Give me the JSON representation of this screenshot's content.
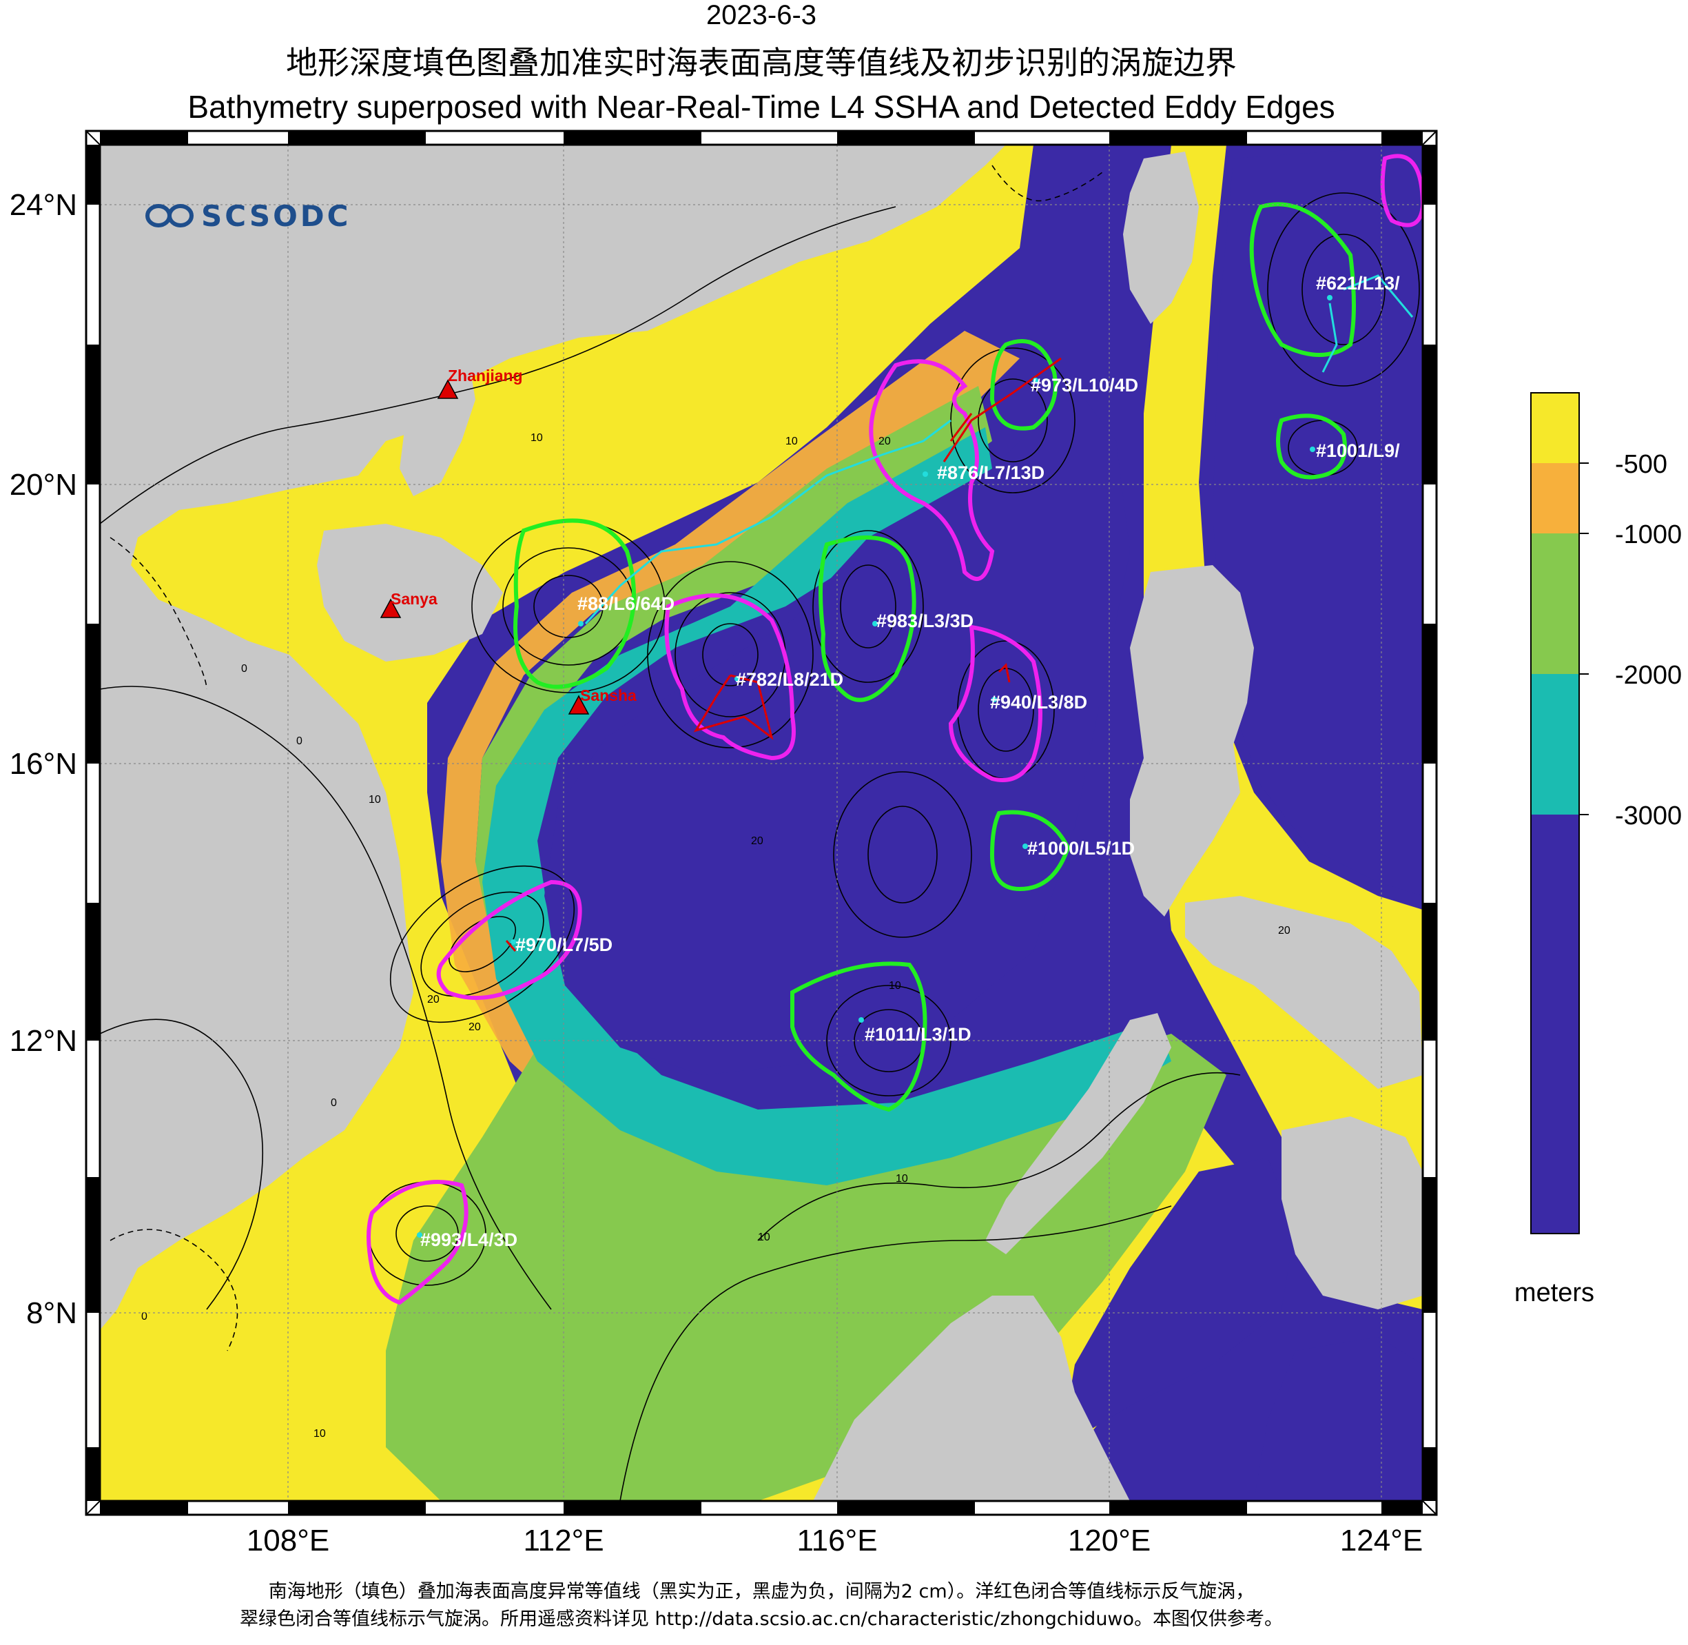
{
  "header": {
    "date": "2023-6-3",
    "title_cn": "地形深度填色图叠加准实时海表面高度等值线及初步识别的涡旋边界",
    "title_en": "Bathymetry superposed with Near-Real-Time L4 SSHA and Detected Eddy Edges"
  },
  "logo": {
    "text": "SCSODC"
  },
  "axes": {
    "lat_labels": [
      "24°N",
      "20°N",
      "16°N",
      "12°N",
      "8°N"
    ],
    "lon_labels": [
      "108°E",
      "112°E",
      "116°E",
      "120°E",
      "124°E"
    ]
  },
  "colorbar": {
    "tick_labels": [
      "-500",
      "-1000",
      "-2000",
      "-3000"
    ],
    "unit": "meters",
    "colors": [
      "#f6e82a",
      "#f7b03c",
      "#86c94e",
      "#1bbcb1",
      "#3b2aa6"
    ]
  },
  "stations": [
    {
      "name": "Zhanjiang"
    },
    {
      "name": "Sanya"
    },
    {
      "name": "Sansha"
    }
  ],
  "eddies": [
    {
      "label": "#88/L6/64D",
      "type": "cyclonic"
    },
    {
      "label": "#876/L7/13D",
      "type": "anticyclonic"
    },
    {
      "label": "#973/L10/4D",
      "type": "cyclonic"
    },
    {
      "label": "#983/L3/3D",
      "type": "cyclonic"
    },
    {
      "label": "#782/L8/21D",
      "type": "anticyclonic"
    },
    {
      "label": "#940/L3/8D",
      "type": "anticyclonic"
    },
    {
      "label": "#1000/L5/1D",
      "type": "cyclonic"
    },
    {
      "label": "#970/L7/5D",
      "type": "anticyclonic"
    },
    {
      "label": "#1011/L3/1D",
      "type": "cyclonic"
    },
    {
      "label": "#993/L4/3D",
      "type": "anticyclonic"
    },
    {
      "label": "#621/L13/",
      "type": "cyclonic"
    },
    {
      "label": "#1001/L9/",
      "type": "cyclonic"
    }
  ],
  "contour_labels": [
    "10",
    "10",
    "0",
    "0",
    "10",
    "20",
    "20",
    "20",
    "10",
    "20",
    "0",
    "10",
    "0",
    "10",
    "20",
    "10"
  ],
  "footnote": {
    "line1": "南海地形（填色）叠加海表面高度异常等值线（黑实为正，黑虚为负，间隔为2 cm）。洋红色闭合等值线标示反气旋涡，",
    "line2": "翠绿色闭合等值线标示气旋涡。所用遥感资料详见 http://data.scsio.ac.cn/characteristic/zhongchiduwo。本图仅供参考。"
  },
  "style_colors": {
    "land": "#c8c8c8",
    "cyclonic_edge": "#22ee22",
    "anticyclonic_edge": "#ee22ee",
    "track_red": "#dd0000",
    "track_cyan": "#22dddd"
  }
}
